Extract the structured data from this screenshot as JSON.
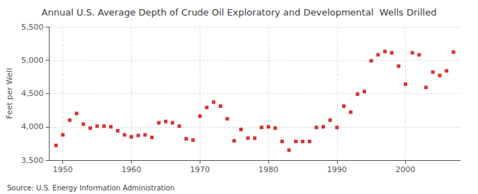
{
  "chart_data": {
    "type": "scatter",
    "title": "Annual U.S. Average Depth of Crude Oil Exploratory and Developmental  Wells Drilled",
    "ylabel": "Feet per Well",
    "annotations": [
      "Source: U.S. Energy Information Administration"
    ],
    "color": "#cc0000",
    "marker": "square",
    "grid": true,
    "xlim": [
      1948,
      2008
    ],
    "ylim": [
      3500,
      5500
    ],
    "xticks": [
      1950,
      1960,
      1970,
      1980,
      1990,
      2000
    ],
    "yticks": [
      {
        "value": 3500,
        "label": "3,500"
      },
      {
        "value": 4000,
        "label": "4,000"
      },
      {
        "value": 4500,
        "label": "4,500"
      },
      {
        "value": 5000,
        "label": "5,000"
      },
      {
        "value": 5500,
        "label": "5,500"
      }
    ],
    "x": [
      1949,
      1950,
      1951,
      1952,
      1953,
      1954,
      1955,
      1956,
      1957,
      1958,
      1959,
      1960,
      1961,
      1962,
      1963,
      1964,
      1965,
      1966,
      1967,
      1968,
      1969,
      1970,
      1971,
      1972,
      1973,
      1974,
      1975,
      1976,
      1977,
      1978,
      1979,
      1980,
      1981,
      1982,
      1983,
      1984,
      1985,
      1986,
      1987,
      1988,
      1989,
      1990,
      1991,
      1992,
      1993,
      1994,
      1995,
      1996,
      1997,
      1998,
      1999,
      2000,
      2001,
      2002,
      2003,
      2004,
      2005,
      2006,
      2007
    ],
    "values": [
      3720,
      3880,
      4100,
      4200,
      4040,
      3980,
      4010,
      4010,
      4000,
      3940,
      3880,
      3850,
      3870,
      3880,
      3840,
      4060,
      4080,
      4060,
      4010,
      3820,
      3800,
      4160,
      4290,
      4370,
      4310,
      4120,
      3790,
      3960,
      3830,
      3830,
      3990,
      4000,
      3980,
      3780,
      3650,
      3780,
      3780,
      3780,
      3990,
      4000,
      4100,
      3990,
      4310,
      4220,
      4490,
      4530,
      4990,
      5080,
      5130,
      5110,
      4910,
      4640,
      5110,
      5080,
      4590,
      4820,
      4770,
      4840,
      5120
    ]
  }
}
